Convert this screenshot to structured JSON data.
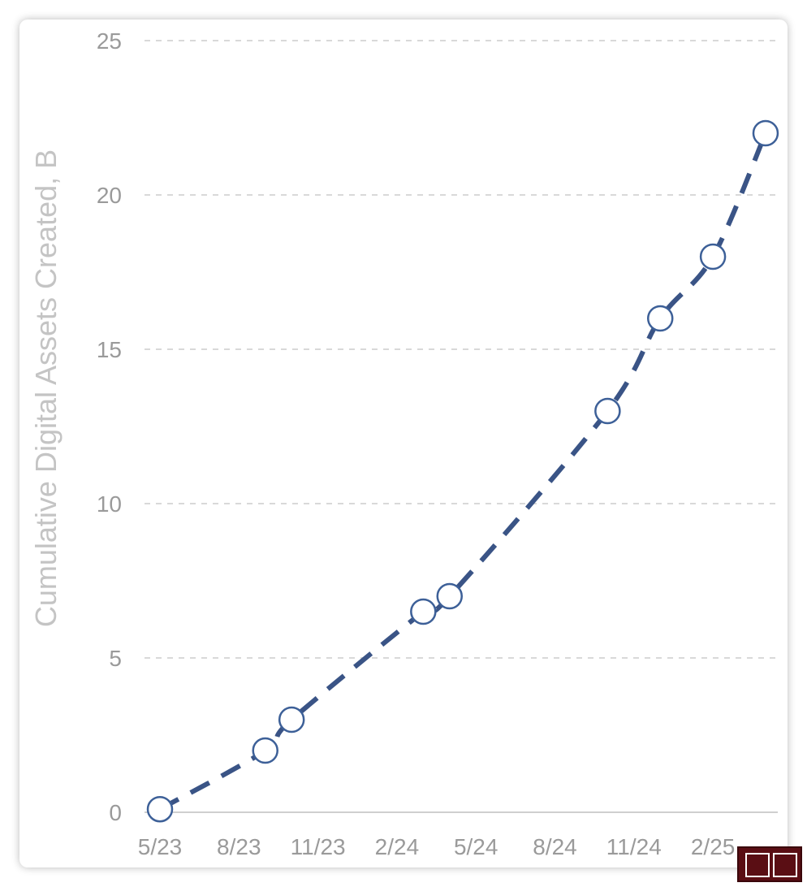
{
  "chart_data": {
    "type": "line",
    "title": "",
    "xlabel": "",
    "ylabel": "Cumulative Digital Assets Created, B",
    "ylim": [
      0,
      25
    ],
    "yticks": [
      0,
      5,
      10,
      15,
      20,
      25
    ],
    "xticks": [
      "5/23",
      "8/23",
      "11/23",
      "2/24",
      "5/24",
      "8/24",
      "11/24",
      "2/25"
    ],
    "grid": "horizontal dashed",
    "line_style": "dashed",
    "colors": {
      "line": "#3a5486",
      "marker_stroke": "#3d6098",
      "marker_fill": "#ffffff",
      "grid": "#d9d9d9",
      "tick_text": "#9a9a9a",
      "axis_title": "#c4c4c4"
    },
    "series": [
      {
        "points": [
          {
            "x": "2023-05-01",
            "y": 0.1
          },
          {
            "x": "2023-09-01",
            "y": 2.0
          },
          {
            "x": "2023-10-01",
            "y": 3.0
          },
          {
            "x": "2024-03-01",
            "y": 6.5
          },
          {
            "x": "2024-04-01",
            "y": 7.0
          },
          {
            "x": "2024-10-01",
            "y": 13.0
          },
          {
            "x": "2024-12-01",
            "y": 16.0
          },
          {
            "x": "2025-02-01",
            "y": 18.0
          },
          {
            "x": "2025-04-01",
            "y": 22.0
          }
        ]
      }
    ]
  }
}
